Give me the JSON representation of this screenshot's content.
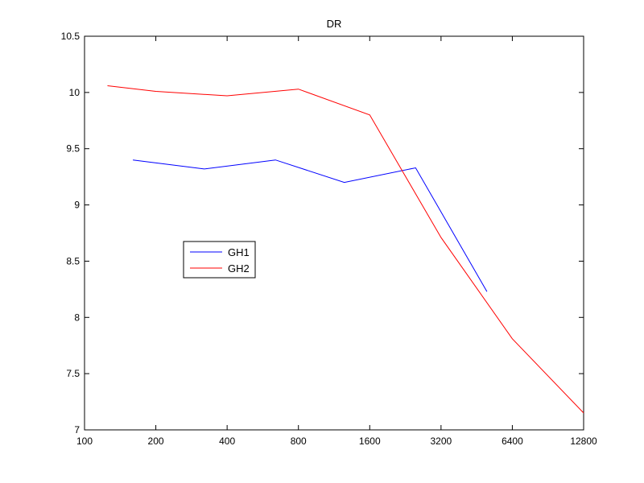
{
  "chart_data": {
    "type": "line",
    "title": "DR",
    "xlabel": "",
    "ylabel": "",
    "x_scale": "log2",
    "xlim": [
      100,
      12800
    ],
    "ylim": [
      7,
      10.5
    ],
    "x_ticks": [
      100,
      200,
      400,
      800,
      1600,
      3200,
      6400,
      12800
    ],
    "x_tick_labels": [
      "100",
      "200",
      "400",
      "800",
      "1600",
      "3200",
      "6400",
      "12800"
    ],
    "y_ticks": [
      7,
      7.5,
      8,
      8.5,
      9,
      9.5,
      10,
      10.5
    ],
    "y_tick_labels": [
      "7",
      "7.5",
      "8",
      "8.5",
      "9",
      "9.5",
      "10",
      "10.5"
    ],
    "grid": false,
    "legend_position": "left-middle",
    "series": [
      {
        "name": "GH1",
        "color": "#0000ff",
        "points": [
          [
            160,
            9.4
          ],
          [
            320,
            9.32
          ],
          [
            640,
            9.4
          ],
          [
            1250,
            9.2
          ],
          [
            2500,
            9.33
          ],
          [
            5000,
            8.23
          ]
        ]
      },
      {
        "name": "GH2",
        "color": "#ff0000",
        "points": [
          [
            125,
            10.06
          ],
          [
            200,
            10.01
          ],
          [
            400,
            9.97
          ],
          [
            800,
            10.03
          ],
          [
            1600,
            9.8
          ],
          [
            3200,
            8.71
          ],
          [
            6400,
            7.81
          ],
          [
            12800,
            7.15
          ]
        ]
      }
    ]
  }
}
